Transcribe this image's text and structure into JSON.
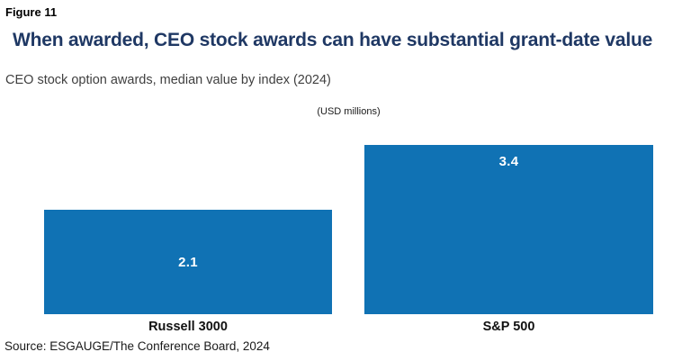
{
  "figure_label": "Figure 11",
  "title": "When awarded, CEO stock awards can have substantial grant-date value",
  "subtitle": "CEO stock option awards, median value by index (2024)",
  "source": "Source: ESGAUGE/The Conference Board, 2024",
  "colors": {
    "bar-color": "#1072B4",
    "title-color": "#1F3864"
  },
  "chart_data": {
    "type": "bar",
    "title": "CEO stock option awards, median value by index (2024)",
    "units": "(USD millions)",
    "categories": [
      "Russell 3000",
      "S&P 500"
    ],
    "values": [
      2.1,
      3.4
    ],
    "value_labels": [
      "2.1",
      "3.4"
    ],
    "xlabel": "",
    "ylabel": "",
    "ylim": [
      0,
      3.4
    ],
    "grid": false,
    "axes_visible": false,
    "legend": "none",
    "bar_color": "#1072B4"
  }
}
